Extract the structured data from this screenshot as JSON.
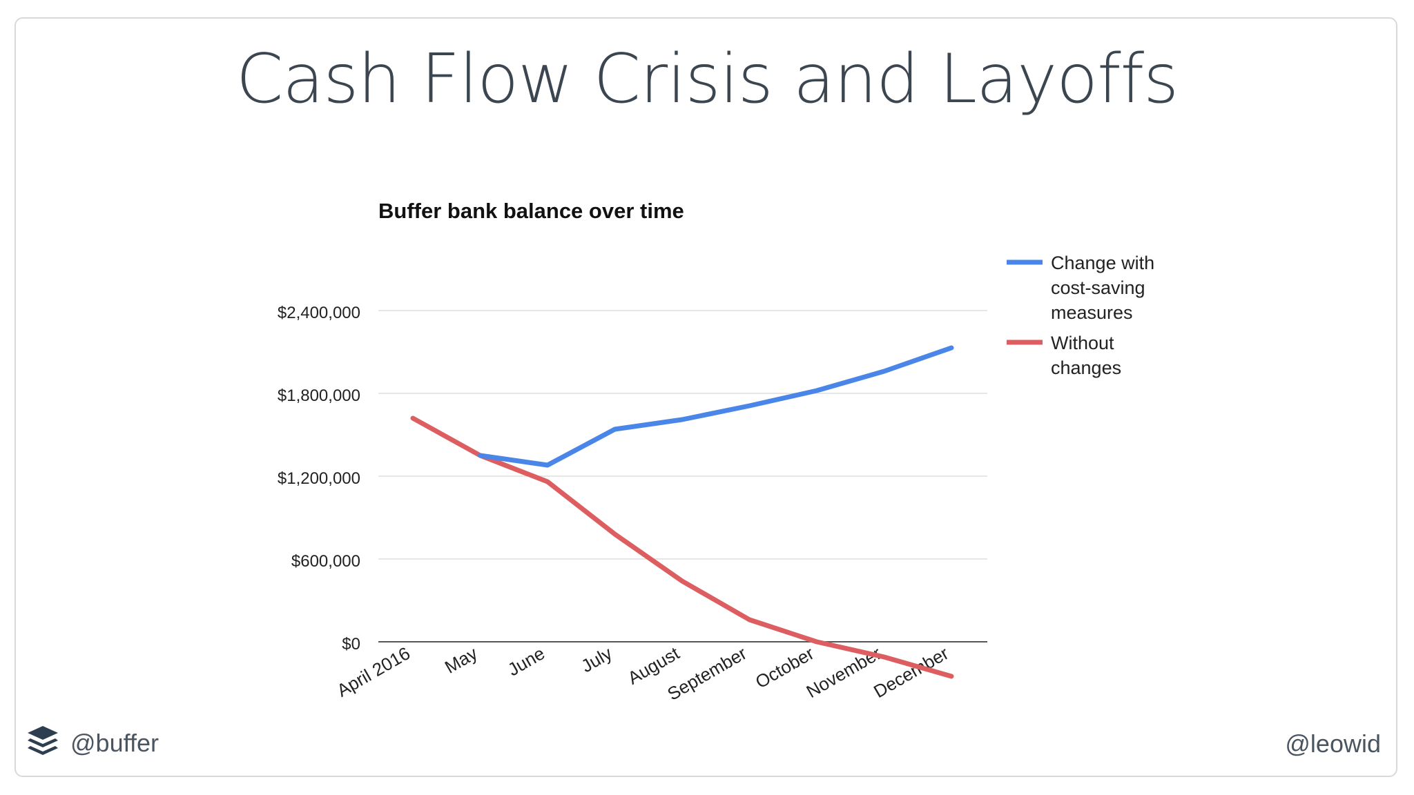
{
  "slide": {
    "title": "Cash Flow Crisis and Layoffs"
  },
  "footer": {
    "left_handle": "@buffer",
    "right_handle": "@leowid",
    "logo_icon": "buffer-stack-icon"
  },
  "chart_data": {
    "type": "line",
    "title": "Buffer bank balance over time",
    "categories": [
      "April 2016",
      "May",
      "June",
      "July",
      "August",
      "September",
      "October",
      "November",
      "December"
    ],
    "y_tick_labels": [
      "$0",
      "$600,000",
      "$1,200,000",
      "$1,800,000",
      "$2,400,000"
    ],
    "y_ticks": [
      0,
      600000,
      1200000,
      1800000,
      2400000
    ],
    "ylim": [
      -300000,
      2750000
    ],
    "grid": true,
    "legend_position": "right",
    "series": [
      {
        "name": "Change with cost-saving measures",
        "legend_lines": [
          "Change with",
          "cost-saving",
          "measures"
        ],
        "color": "#4a86e8",
        "values": [
          null,
          1350000,
          1280000,
          1540000,
          1610000,
          1710000,
          1820000,
          1960000,
          2130000
        ]
      },
      {
        "name": "Without changes",
        "legend_lines": [
          "Without",
          "changes"
        ],
        "color": "#dd5e60",
        "values": [
          1620000,
          1350000,
          1160000,
          780000,
          440000,
          160000,
          0,
          -110000,
          -250000
        ]
      }
    ]
  }
}
